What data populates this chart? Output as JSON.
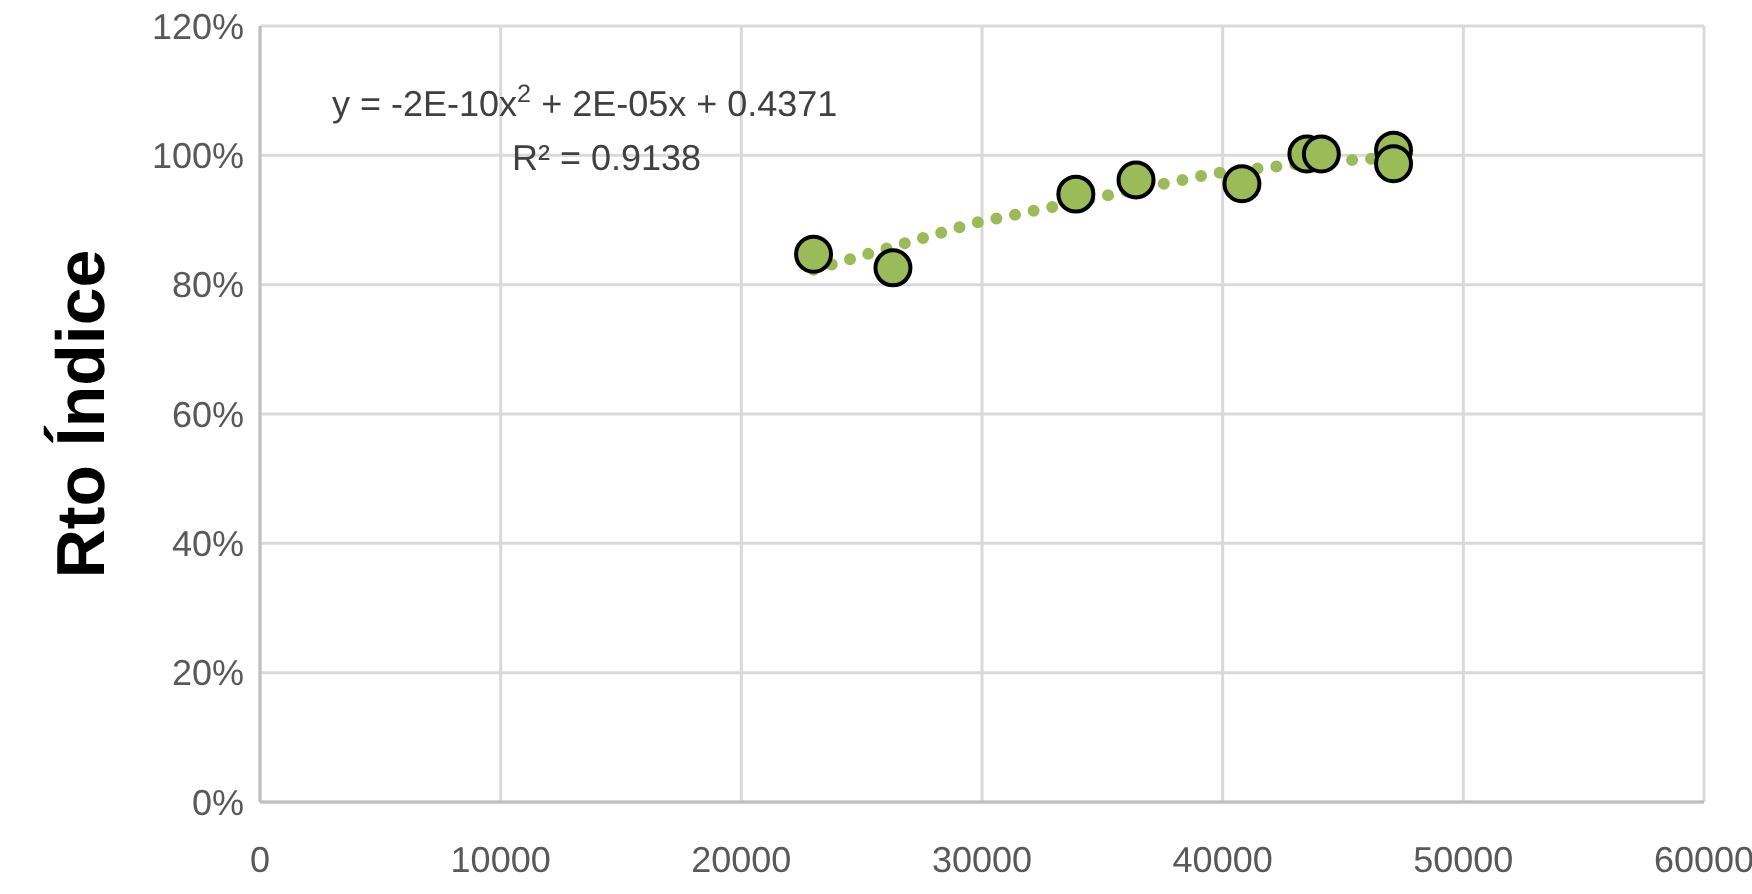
{
  "chart_data": {
    "type": "scatter",
    "ylabel": "Rto Índice",
    "xlim": [
      0,
      60000
    ],
    "xticks": [
      0,
      10000,
      20000,
      30000,
      40000,
      50000,
      60000
    ],
    "ylim": [
      0,
      120
    ],
    "yticks": [
      {
        "value": 0,
        "label": "0%"
      },
      {
        "value": 20,
        "label": "20%"
      },
      {
        "value": 40,
        "label": "40%"
      },
      {
        "value": 60,
        "label": "60%"
      },
      {
        "value": 80,
        "label": "80%"
      },
      {
        "value": 100,
        "label": "100%"
      },
      {
        "value": 120,
        "label": "120%"
      }
    ],
    "grid": true,
    "marker": "circle",
    "annotations": [
      "y = -2E-10x$^{2}$ + 2E-05x + 0.4371",
      "R² = 0.9138"
    ],
    "series": [
      {
        "color": "#9bbb59",
        "x": [
          23000,
          26300,
          33900,
          36400,
          40800,
          43500,
          44100,
          47100,
          47100
        ],
        "values": [
          84.7,
          82.6,
          94.0,
          96.2,
          95.6,
          100.2,
          100.2,
          100.8,
          98.7
        ]
      },
      {
        "type": "line",
        "color": "#9bbb59",
        "line_style": "dotted",
        "marker": "none",
        "x": [
          23000,
          29650,
          39630,
          43480,
          46270,
          47500
        ],
        "values": [
          82.3,
          89.5,
          97.2,
          98.8,
          99.5,
          99.7
        ]
      }
    ]
  }
}
